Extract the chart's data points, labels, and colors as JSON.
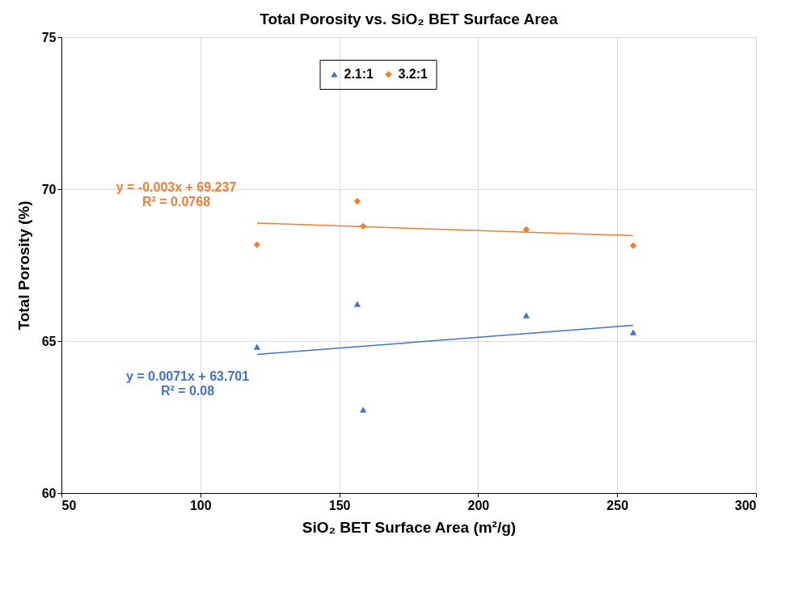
{
  "chart_data": {
    "type": "scatter",
    "title": "Total Porosity vs. SiO₂ BET Surface Area",
    "xlabel": "SiO₂ BET Surface Area (m²/g)",
    "ylabel": "Total Porosity (%)",
    "xlim": [
      50,
      300
    ],
    "xticks": [
      50,
      100,
      150,
      200,
      250,
      300
    ],
    "ylim": [
      60,
      75
    ],
    "yticks": [
      60,
      65,
      70,
      75
    ],
    "grid": true,
    "legend": "top",
    "series": [
      {
        "name": "2.1:1",
        "color": "#4472c4",
        "marker": "triangle",
        "x": [
          120.4,
          156.5,
          158.6,
          217.3,
          255.8
        ],
        "values": [
          64.81,
          66.22,
          62.74,
          65.85,
          65.29
        ]
      },
      {
        "name": "3.2:1",
        "color": "#ed7d31",
        "marker": "diamond",
        "x": [
          120.4,
          156.5,
          158.6,
          217.3,
          255.8
        ],
        "values": [
          68.17,
          69.6,
          68.78,
          68.67,
          68.14
        ]
      },
      {
        "type": "line",
        "color": "#4472c4",
        "x": [
          120.4,
          255.8
        ],
        "values": [
          64.56,
          65.52
        ]
      },
      {
        "type": "line",
        "color": "#ed7d31",
        "x": [
          120.4,
          255.8
        ],
        "values": [
          68.88,
          68.47
        ]
      }
    ],
    "annotations": [
      "y = 0.0071x + 63.701\nR² = 0.08",
      "y = -0.003x + 69.237\nR² = 0.0768"
    ]
  }
}
